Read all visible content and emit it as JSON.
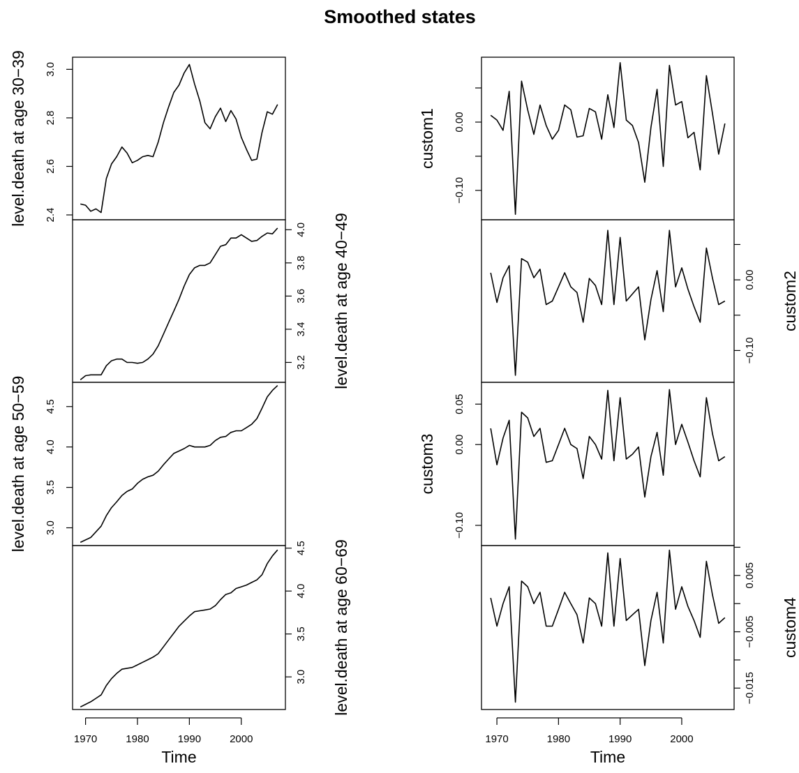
{
  "title": "Smoothed states",
  "chart_data": {
    "type": "line",
    "title": "Smoothed states",
    "xlabel": "Time",
    "x": [
      1969,
      1970,
      1971,
      1972,
      1973,
      1974,
      1975,
      1976,
      1977,
      1978,
      1979,
      1980,
      1981,
      1982,
      1983,
      1984,
      1985,
      1986,
      1987,
      1988,
      1989,
      1990,
      1991,
      1992,
      1993,
      1994,
      1995,
      1996,
      1997,
      1998,
      1999,
      2000,
      2001,
      2002,
      2003,
      2004,
      2005,
      2006,
      2007
    ],
    "xlim": [
      1967.5,
      2008.5
    ],
    "xticks": [
      1970,
      1980,
      1990,
      2000
    ],
    "xtick_labels": [
      "1970",
      "1980",
      "1990",
      "2000"
    ],
    "grid": false,
    "panels": [
      {
        "ylabel": "level.death at age 30−39",
        "ylim": [
          2.38,
          3.05
        ],
        "yticks": [
          2.4,
          2.6,
          2.8,
          3.0
        ],
        "ytick_labels": [
          "2.4",
          "2.6",
          "2.8",
          "3.0"
        ],
        "values": [
          2.445,
          2.44,
          2.415,
          2.425,
          2.41,
          2.55,
          2.61,
          2.64,
          2.68,
          2.655,
          2.615,
          2.625,
          2.64,
          2.645,
          2.64,
          2.7,
          2.78,
          2.845,
          2.905,
          2.935,
          2.985,
          3.02,
          2.94,
          2.87,
          2.78,
          2.755,
          2.805,
          2.84,
          2.785,
          2.83,
          2.795,
          2.72,
          2.67,
          2.625,
          2.63,
          2.74,
          2.825,
          2.815,
          2.855
        ]
      },
      {
        "ylabel": "level.death at age 40−49",
        "ylim": [
          3.08,
          4.06
        ],
        "yticks": [
          3.2,
          3.4,
          3.6,
          3.8,
          4.0
        ],
        "ytick_labels": [
          "3.2",
          "3.4",
          "3.6",
          "3.8",
          "4.0"
        ],
        "values": [
          3.095,
          3.12,
          3.125,
          3.125,
          3.125,
          3.18,
          3.21,
          3.22,
          3.22,
          3.2,
          3.2,
          3.195,
          3.2,
          3.22,
          3.25,
          3.3,
          3.37,
          3.44,
          3.51,
          3.58,
          3.66,
          3.73,
          3.77,
          3.785,
          3.785,
          3.8,
          3.85,
          3.9,
          3.91,
          3.95,
          3.95,
          3.97,
          3.95,
          3.93,
          3.935,
          3.96,
          3.98,
          3.975,
          4.01
        ]
      },
      {
        "ylabel": "level.death at age 50−59",
        "ylim": [
          2.78,
          4.8
        ],
        "yticks": [
          3.0,
          3.5,
          4.0,
          4.5
        ],
        "ytick_labels": [
          "3.0",
          "3.5",
          "4.0",
          "4.5"
        ],
        "values": [
          2.82,
          2.85,
          2.88,
          2.95,
          3.02,
          3.15,
          3.25,
          3.32,
          3.4,
          3.45,
          3.48,
          3.55,
          3.6,
          3.63,
          3.65,
          3.7,
          3.78,
          3.85,
          3.92,
          3.95,
          3.98,
          4.02,
          4.0,
          4.0,
          4.0,
          4.02,
          4.08,
          4.12,
          4.13,
          4.18,
          4.2,
          4.2,
          4.24,
          4.28,
          4.35,
          4.48,
          4.62,
          4.7,
          4.76
        ]
      },
      {
        "ylabel": "level.death at age 60−69",
        "ylim": [
          2.62,
          4.53
        ],
        "yticks": [
          3.0,
          3.5,
          4.0,
          4.5
        ],
        "ytick_labels": [
          "3.0",
          "3.5",
          "4.0",
          "4.5"
        ],
        "values": [
          2.65,
          2.68,
          2.71,
          2.75,
          2.79,
          2.9,
          2.98,
          3.04,
          3.09,
          3.1,
          3.11,
          3.14,
          3.17,
          3.2,
          3.23,
          3.27,
          3.35,
          3.43,
          3.51,
          3.59,
          3.65,
          3.71,
          3.76,
          3.77,
          3.78,
          3.79,
          3.83,
          3.9,
          3.96,
          3.98,
          4.03,
          4.05,
          4.07,
          4.1,
          4.13,
          4.19,
          4.32,
          4.41,
          4.48
        ]
      },
      {
        "ylabel": "custom1",
        "ylim": [
          -0.143,
          0.095
        ],
        "yticks": [
          -0.1,
          0.0
        ],
        "ytick_labels": [
          "−0.10",
          "0.00"
        ],
        "extra_ticks": [
          -0.05,
          0.05
        ],
        "values": [
          0.01,
          0.003,
          -0.012,
          0.045,
          -0.135,
          0.06,
          0.018,
          -0.018,
          0.025,
          -0.005,
          -0.025,
          -0.012,
          0.025,
          0.018,
          -0.022,
          -0.02,
          0.02,
          0.015,
          -0.025,
          0.04,
          -0.008,
          0.087,
          0.003,
          -0.005,
          -0.03,
          -0.088,
          -0.008,
          0.048,
          -0.065,
          0.083,
          0.025,
          0.03,
          -0.023,
          -0.015,
          -0.07,
          0.068,
          0.012,
          -0.047,
          -0.002
        ]
      },
      {
        "ylabel": "custom2",
        "ylim": [
          -0.145,
          0.085
        ],
        "yticks": [
          -0.1,
          0.0
        ],
        "ytick_labels": [
          "−0.10",
          "0.00"
        ],
        "extra_ticks": [
          -0.05,
          0.05
        ],
        "values": [
          0.01,
          -0.032,
          0.003,
          0.02,
          -0.135,
          0.03,
          0.025,
          0.003,
          0.015,
          -0.035,
          -0.03,
          -0.01,
          0.01,
          -0.01,
          -0.018,
          -0.06,
          0.002,
          -0.008,
          -0.035,
          0.07,
          -0.035,
          0.06,
          -0.03,
          -0.02,
          -0.01,
          -0.085,
          -0.028,
          0.013,
          -0.045,
          0.07,
          -0.01,
          0.017,
          -0.013,
          -0.038,
          -0.06,
          0.045,
          0.002,
          -0.035,
          -0.03
        ]
      },
      {
        "ylabel": "custom3",
        "ylim": [
          -0.125,
          0.077
        ],
        "yticks": [
          -0.1,
          0.0,
          0.05
        ],
        "ytick_labels": [
          "−0.10",
          "0.00",
          "0.05"
        ],
        "values": [
          0.02,
          -0.025,
          0.008,
          0.03,
          -0.117,
          0.04,
          0.033,
          0.01,
          0.02,
          -0.022,
          -0.02,
          0.0,
          0.02,
          0.0,
          -0.005,
          -0.042,
          0.01,
          0.0,
          -0.018,
          0.067,
          -0.02,
          0.058,
          -0.018,
          -0.012,
          -0.003,
          -0.065,
          -0.015,
          0.015,
          -0.038,
          0.068,
          0.0,
          0.025,
          0.003,
          -0.02,
          -0.04,
          0.058,
          0.013,
          -0.02,
          -0.015
        ]
      },
      {
        "ylabel": "custom4",
        "ylim": [
          -0.0188,
          0.0103
        ],
        "yticks": [
          -0.015,
          -0.005,
          0.005
        ],
        "ytick_labels": [
          "−0.015",
          "−0.005",
          "0.005"
        ],
        "extra_ticks": [
          -0.01,
          0.0,
          0.01
        ],
        "values": [
          0.001,
          -0.004,
          0.0,
          0.003,
          -0.0175,
          0.004,
          0.003,
          0.0,
          0.002,
          -0.004,
          -0.004,
          -0.001,
          0.002,
          0.0,
          -0.002,
          -0.007,
          0.001,
          0.0,
          -0.004,
          0.009,
          -0.004,
          0.008,
          -0.003,
          -0.002,
          -0.001,
          -0.011,
          -0.003,
          0.002,
          -0.007,
          0.0095,
          -0.001,
          0.003,
          -0.0005,
          -0.003,
          -0.006,
          0.0075,
          0.0015,
          -0.0035,
          -0.0025
        ]
      }
    ]
  }
}
